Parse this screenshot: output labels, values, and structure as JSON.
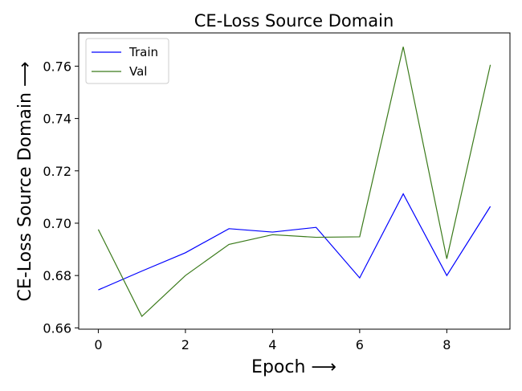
{
  "chart_data": {
    "type": "line",
    "title": "CE-Loss Source Domain",
    "xlabel": "Epoch ⟶",
    "ylabel": "CE-Loss Source Domain ⟶",
    "xlim": [
      -0.45,
      9.45
    ],
    "ylim": [
      0.6595,
      0.7727
    ],
    "xticks": [
      0,
      2,
      4,
      6,
      8
    ],
    "yticks": [
      0.66,
      0.68,
      0.7,
      0.72,
      0.74,
      0.76
    ],
    "ytick_labels": [
      "0.66",
      "0.68",
      "0.70",
      "0.72",
      "0.74",
      "0.76"
    ],
    "grid": false,
    "legend_position": "upper-left",
    "x": [
      0,
      1,
      2,
      3,
      4,
      5,
      6,
      7,
      8,
      9
    ],
    "series": [
      {
        "name": "Train",
        "color": "#0000ff",
        "values": [
          0.6745,
          0.6817,
          0.6887,
          0.6979,
          0.6966,
          0.6984,
          0.6791,
          0.7112,
          0.68,
          0.7064
        ]
      },
      {
        "name": "Val",
        "color": "#3a7a1a",
        "values": [
          0.6976,
          0.6644,
          0.68,
          0.6919,
          0.6956,
          0.6946,
          0.6948,
          0.7674,
          0.6864,
          0.7605
        ]
      }
    ]
  }
}
